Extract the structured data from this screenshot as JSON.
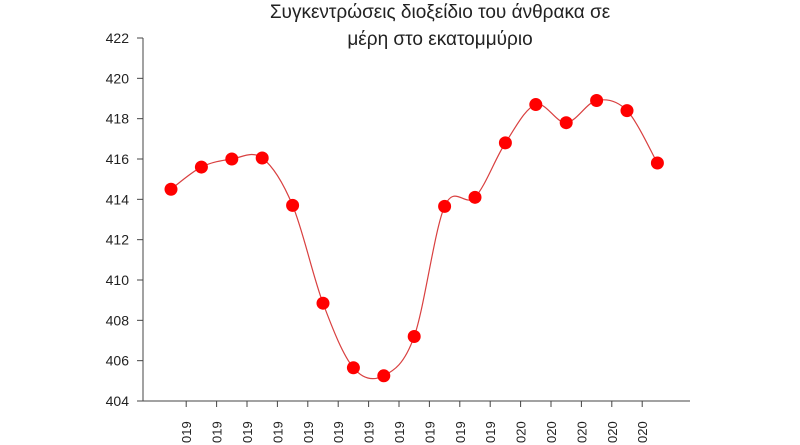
{
  "chart_data": {
    "type": "line",
    "title_lines": [
      "Συγκεντρώσεις διοξείδιο του άνθρακα  σε",
      "μέρη στο εκατομμύριο"
    ],
    "xlabel": "",
    "ylabel": "",
    "ylim": [
      404,
      422
    ],
    "y_ticks": [
      404,
      406,
      408,
      410,
      412,
      414,
      416,
      418,
      420,
      422
    ],
    "x_tick_labels": [
      "019",
      "019",
      "019",
      "019",
      "019",
      "019",
      "019",
      "019",
      "019",
      "019",
      "019",
      "020",
      "020",
      "020",
      "020",
      "020"
    ],
    "grid": false,
    "series": [
      {
        "values": [
          414.5,
          415.6,
          416.0,
          416.05,
          413.7,
          408.85,
          405.65,
          405.25,
          407.2,
          413.65,
          414.1,
          416.8,
          418.7,
          417.8,
          418.9,
          418.4,
          415.8
        ],
        "color": "#ff0000",
        "line_color": "#d94040"
      }
    ]
  }
}
